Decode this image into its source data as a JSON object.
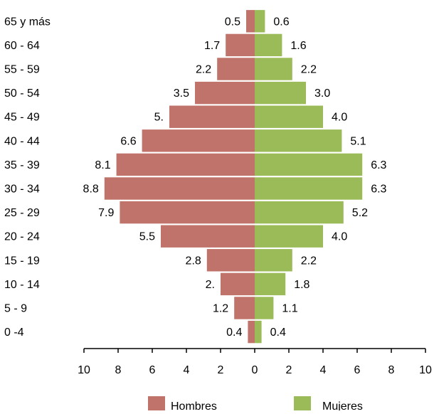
{
  "chart_data": {
    "type": "bar",
    "orientation": "horizontal",
    "layout": "population-pyramid",
    "categories": [
      "65  y más",
      "60 - 64",
      "55 - 59",
      "50 - 54",
      "45 - 49",
      "40 - 44",
      "35 - 39",
      "30 - 34",
      "25 - 29",
      "20 - 24",
      "15 - 19",
      "10 - 14",
      "5 - 9",
      "0 -4"
    ],
    "series": [
      {
        "name": "Hombres",
        "side": "left",
        "color": "#c0736a",
        "values": [
          0.5,
          1.7,
          2.2,
          3.5,
          5.0,
          6.6,
          8.1,
          8.8,
          7.9,
          5.5,
          2.8,
          2.0,
          1.2,
          0.4
        ],
        "labels": [
          "0.5",
          "1.7",
          "2.2",
          "3.5",
          "5.",
          "6.6",
          "8.1",
          "8.8",
          "7.9",
          "5.5",
          "2.8",
          "2.",
          "1.2",
          "0.4"
        ]
      },
      {
        "name": "Mujeres",
        "side": "right",
        "color": "#9bbb59",
        "values": [
          0.6,
          1.6,
          2.2,
          3.0,
          4.0,
          5.1,
          6.3,
          6.3,
          5.2,
          4.0,
          2.2,
          1.8,
          1.1,
          0.4
        ],
        "labels": [
          "0.6",
          "1.6",
          "2.2",
          "3.0",
          "4.0",
          "5.1",
          "6.3",
          "6.3",
          "5.2",
          "4.0",
          "2.2",
          "1.8",
          "1.1",
          "0.4"
        ]
      }
    ],
    "xlim": [
      -10,
      10
    ],
    "x_ticks": [
      -10,
      -8,
      -6,
      -4,
      -2,
      0,
      2,
      4,
      6,
      8,
      10
    ],
    "x_tick_labels": [
      "10",
      "8",
      "6",
      "4",
      "2",
      "0",
      "2",
      "4",
      "6",
      "8",
      "10"
    ],
    "title": "",
    "xlabel": "",
    "ylabel": "",
    "grid": false,
    "legend_position": "bottom"
  }
}
